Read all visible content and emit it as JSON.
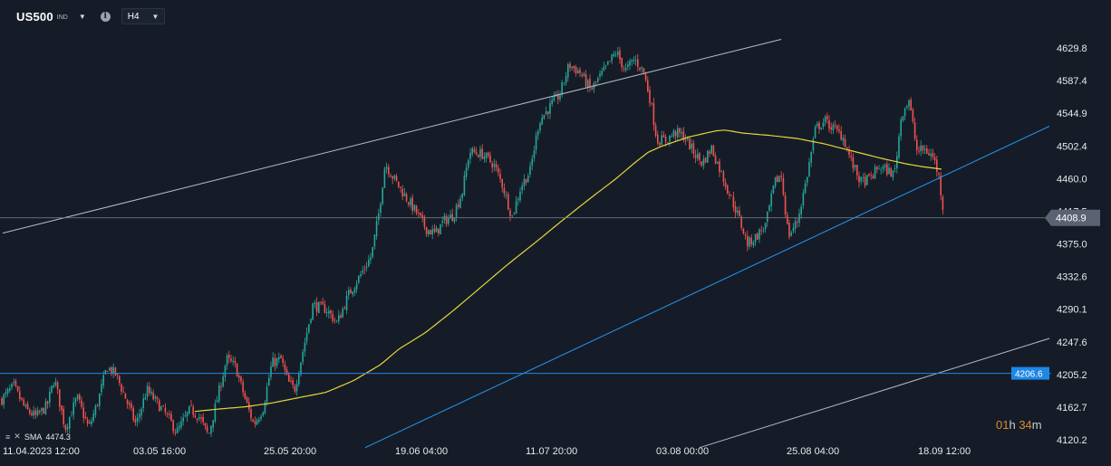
{
  "header": {
    "symbol": "US500",
    "symbol_type": "IND",
    "timeframe": "H4"
  },
  "legend": {
    "label": "SMA",
    "value": "4474.3"
  },
  "countdown": {
    "hours": "01",
    "hours_unit": "h",
    "minutes": "34",
    "minutes_unit": "m"
  },
  "price_tags": {
    "current": "4408.9",
    "horizontal_level": "4206.6"
  },
  "colors": {
    "background": "#161c27",
    "up_candle": "#26a69a",
    "down_candle": "#ef5350",
    "sma": "#e3d63c",
    "trendline_blue": "#2196f3",
    "trendline_light": "#b4bccb",
    "price_tag_bg": "#5b6373",
    "level_tag_bg": "#1e88e5",
    "countdown": "#d88a2e"
  },
  "chart_data": {
    "type": "candlestick",
    "timeframe": "H4",
    "ylim": [
      4107,
      4650
    ],
    "y_ticks": [
      4629.8,
      4587.4,
      4544.9,
      4502.4,
      4460.0,
      4417.5,
      4375.0,
      4332.6,
      4290.1,
      4247.6,
      4205.2,
      4162.7,
      4120.2
    ],
    "x_ticks": [
      "11.04.2023 12:00",
      "03.05 16:00",
      "25.05 20:00",
      "19.06 04:00",
      "11.07 20:00",
      "03.08 00:00",
      "25.08 04:00",
      "18.09 12:00"
    ],
    "grid": false,
    "last_price": 4408.9,
    "horizontal_level": 4206.6,
    "price_anchors": [
      [
        0,
        4170
      ],
      [
        15,
        4190
      ],
      [
        28,
        4160
      ],
      [
        40,
        4150
      ],
      [
        52,
        4165
      ],
      [
        60,
        4200
      ],
      [
        72,
        4135
      ],
      [
        85,
        4175
      ],
      [
        98,
        4135
      ],
      [
        108,
        4170
      ],
      [
        118,
        4215
      ],
      [
        128,
        4205
      ],
      [
        140,
        4170
      ],
      [
        150,
        4140
      ],
      [
        162,
        4185
      ],
      [
        172,
        4170
      ],
      [
        185,
        4150
      ],
      [
        195,
        4130
      ],
      [
        210,
        4160
      ],
      [
        220,
        4150
      ],
      [
        230,
        4125
      ],
      [
        240,
        4175
      ],
      [
        250,
        4225
      ],
      [
        260,
        4215
      ],
      [
        270,
        4175
      ],
      [
        280,
        4140
      ],
      [
        290,
        4160
      ],
      [
        300,
        4220
      ],
      [
        310,
        4225
      ],
      [
        318,
        4195
      ],
      [
        325,
        4185
      ],
      [
        335,
        4240
      ],
      [
        345,
        4295
      ],
      [
        360,
        4290
      ],
      [
        372,
        4272
      ],
      [
        385,
        4310
      ],
      [
        398,
        4335
      ],
      [
        410,
        4360
      ],
      [
        418,
        4415
      ],
      [
        425,
        4480
      ],
      [
        432,
        4465
      ],
      [
        440,
        4450
      ],
      [
        450,
        4432
      ],
      [
        460,
        4415
      ],
      [
        470,
        4395
      ],
      [
        480,
        4388
      ],
      [
        490,
        4405
      ],
      [
        500,
        4412
      ],
      [
        510,
        4442
      ],
      [
        518,
        4495
      ],
      [
        532,
        4492
      ],
      [
        545,
        4478
      ],
      [
        555,
        4450
      ],
      [
        565,
        4410
      ],
      [
        575,
        4450
      ],
      [
        585,
        4470
      ],
      [
        595,
        4535
      ],
      [
        608,
        4555
      ],
      [
        618,
        4570
      ],
      [
        628,
        4608
      ],
      [
        640,
        4598
      ],
      [
        652,
        4575
      ],
      [
        662,
        4592
      ],
      [
        672,
        4610
      ],
      [
        680,
        4625
      ],
      [
        690,
        4600
      ],
      [
        700,
        4615
      ],
      [
        710,
        4600
      ],
      [
        718,
        4560
      ],
      [
        725,
        4510
      ],
      [
        735,
        4510
      ],
      [
        745,
        4520
      ],
      [
        755,
        4515
      ],
      [
        765,
        4495
      ],
      [
        775,
        4480
      ],
      [
        785,
        4500
      ],
      [
        795,
        4470
      ],
      [
        805,
        4440
      ],
      [
        815,
        4410
      ],
      [
        825,
        4375
      ],
      [
        835,
        4385
      ],
      [
        845,
        4400
      ],
      [
        855,
        4455
      ],
      [
        862,
        4465
      ],
      [
        870,
        4385
      ],
      [
        880,
        4405
      ],
      [
        890,
        4460
      ],
      [
        900,
        4525
      ],
      [
        910,
        4535
      ],
      [
        920,
        4525
      ],
      [
        930,
        4515
      ],
      [
        940,
        4480
      ],
      [
        950,
        4455
      ],
      [
        960,
        4460
      ],
      [
        970,
        4475
      ],
      [
        980,
        4470
      ],
      [
        987,
        4465
      ],
      [
        995,
        4545
      ],
      [
        1003,
        4562
      ],
      [
        1012,
        4495
      ],
      [
        1020,
        4498
      ],
      [
        1030,
        4488
      ],
      [
        1036,
        4462
      ],
      [
        1042,
        4410
      ]
    ],
    "sma_anchors": [
      [
        215,
        4157
      ],
      [
        240,
        4160
      ],
      [
        270,
        4163
      ],
      [
        300,
        4168
      ],
      [
        330,
        4175
      ],
      [
        360,
        4182
      ],
      [
        390,
        4197
      ],
      [
        420,
        4218
      ],
      [
        440,
        4238
      ],
      [
        470,
        4260
      ],
      [
        500,
        4288
      ],
      [
        530,
        4318
      ],
      [
        560,
        4348
      ],
      [
        590,
        4376
      ],
      [
        620,
        4405
      ],
      [
        650,
        4433
      ],
      [
        680,
        4460
      ],
      [
        700,
        4480
      ],
      [
        715,
        4494
      ],
      [
        730,
        4502
      ],
      [
        760,
        4514
      ],
      [
        790,
        4522
      ],
      [
        800,
        4523
      ],
      [
        820,
        4519
      ],
      [
        850,
        4516
      ],
      [
        880,
        4512
      ],
      [
        910,
        4505
      ],
      [
        940,
        4496
      ],
      [
        970,
        4487
      ],
      [
        1000,
        4479
      ],
      [
        1020,
        4475
      ],
      [
        1040,
        4472
      ]
    ],
    "trendlines": [
      {
        "style": "light",
        "from": [
          3,
          4389
        ],
        "to": [
          862,
          4641
        ]
      },
      {
        "style": "blue",
        "from": [
          403,
          4110
        ],
        "to": [
          1158,
          4528
        ]
      },
      {
        "style": "light",
        "from": [
          772,
          4110
        ],
        "to": [
          1158,
          4252
        ]
      }
    ]
  }
}
